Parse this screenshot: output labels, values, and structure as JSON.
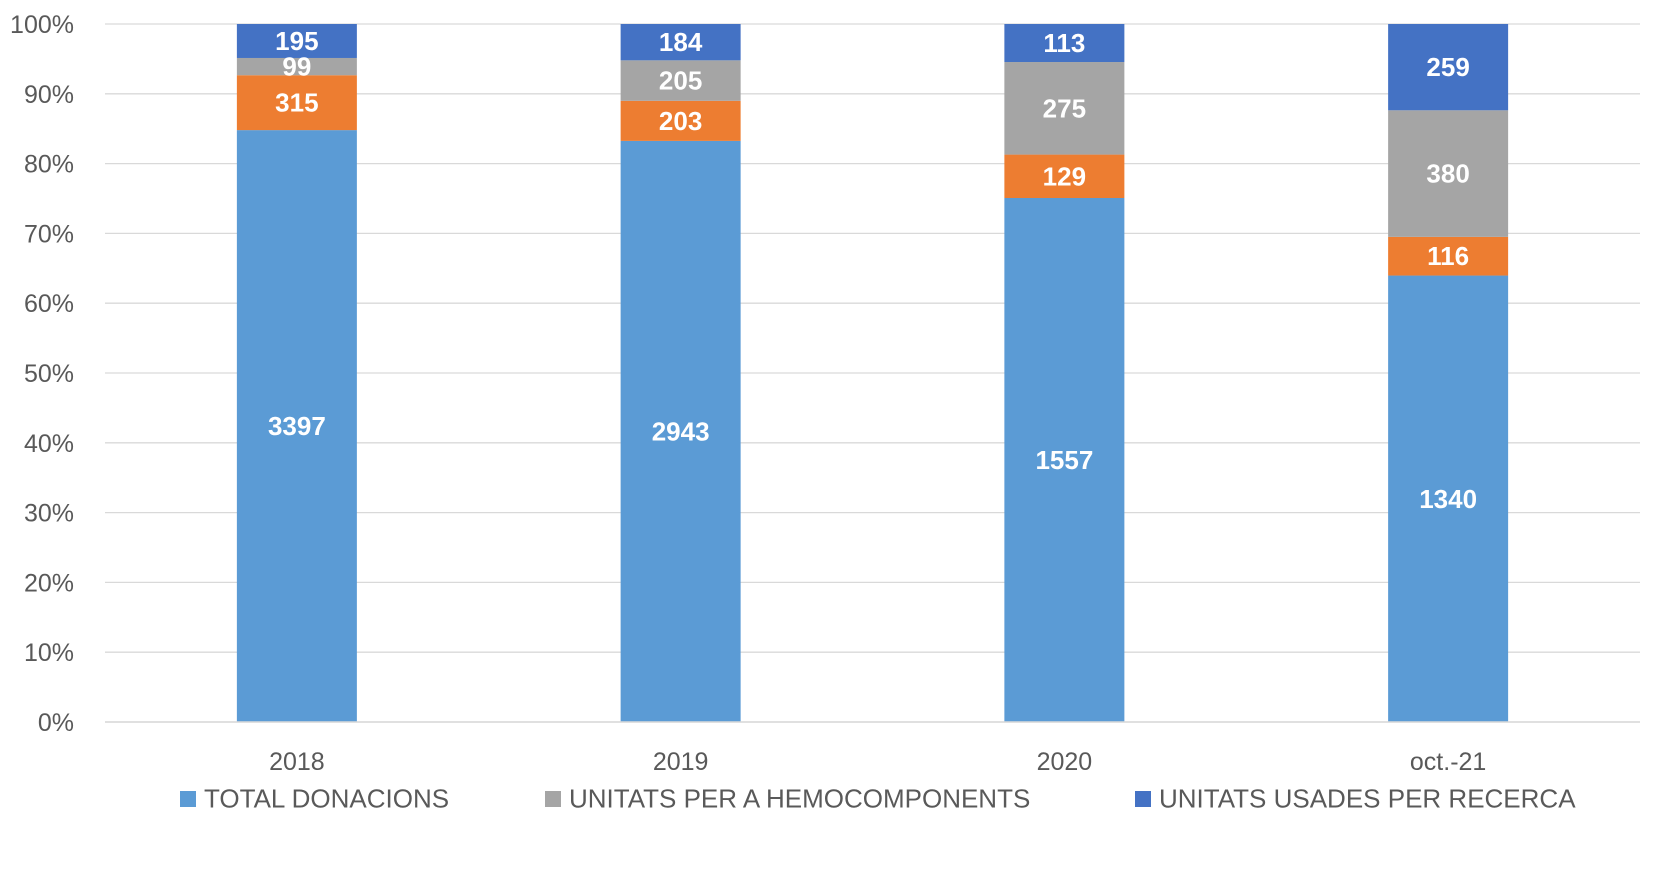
{
  "chart_data": {
    "type": "bar",
    "stacked": true,
    "normalized": true,
    "categories": [
      "2018",
      "2019",
      "2020",
      "oct.-21"
    ],
    "series": [
      {
        "name": "TOTAL DONACIONS",
        "color": "#5b9bd5",
        "values": [
          3397,
          2943,
          1557,
          1340
        ]
      },
      {
        "name": "",
        "color": "#ed7d31",
        "values": [
          315,
          203,
          129,
          116
        ]
      },
      {
        "name": "UNITATS PER A HEMOCOMPONENTS",
        "color": "#a5a5a5",
        "values": [
          99,
          205,
          275,
          380
        ]
      },
      {
        "name": "UNITATS USADES PER RECERCA",
        "color": "#4472c4",
        "values": [
          195,
          184,
          113,
          259
        ]
      }
    ],
    "y_ticks": [
      "0%",
      "10%",
      "20%",
      "30%",
      "40%",
      "50%",
      "60%",
      "70%",
      "80%",
      "90%",
      "100%"
    ],
    "ylim": [
      0,
      100
    ],
    "grid": true,
    "legend_position": "bottom",
    "legend_entries": [
      "TOTAL DONACIONS",
      "UNITATS PER A HEMOCOMPONENTS",
      "UNITATS USADES PER RECERCA"
    ],
    "data_labels": true
  }
}
